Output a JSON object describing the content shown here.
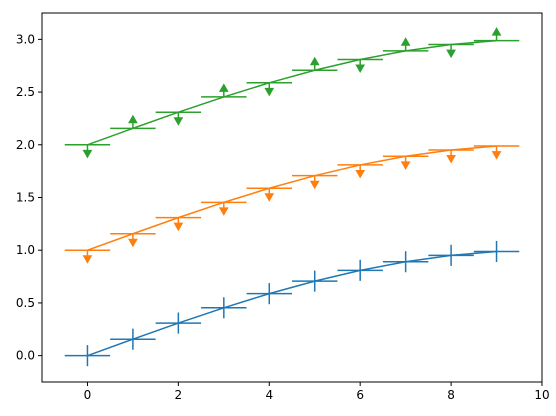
{
  "chart_data": {
    "type": "line",
    "title": "",
    "xlabel": "",
    "ylabel": "",
    "xlim": [
      -1,
      10
    ],
    "ylim": [
      -0.25,
      3.25
    ],
    "x_ticks": [
      0,
      2,
      4,
      6,
      8,
      10
    ],
    "x_tick_labels": [
      "0",
      "2",
      "4",
      "6",
      "8",
      "10"
    ],
    "y_ticks": [
      0.0,
      0.5,
      1.0,
      1.5,
      2.0,
      2.5,
      3.0
    ],
    "y_tick_labels": [
      "0.0",
      "0.5",
      "1.0",
      "1.5",
      "2.0",
      "2.5",
      "3.0"
    ],
    "grid": false,
    "legend": "none",
    "errorbar_style": "error bars with half-width horizontal bars (x error 0.5) and vertical bars (y error 0.1); some vertical bars drawn as upper-limit or lower-limit arrows",
    "x": [
      0,
      1,
      2,
      3,
      4,
      5,
      6,
      7,
      8,
      9
    ],
    "xerr": 0.5,
    "yerr": 0.1,
    "series": [
      {
        "color": "#1f77b4",
        "values": [
          0.0,
          0.156,
          0.309,
          0.454,
          0.588,
          0.707,
          0.809,
          0.891,
          0.951,
          0.988
        ],
        "y_markers": [
          "bar",
          "bar",
          "bar",
          "bar",
          "bar",
          "bar",
          "bar",
          "bar",
          "bar",
          "bar"
        ]
      },
      {
        "color": "#ff7f0e",
        "values": [
          1.0,
          1.156,
          1.309,
          1.454,
          1.588,
          1.707,
          1.809,
          1.891,
          1.951,
          1.988
        ],
        "y_markers": [
          "upper-limit",
          "upper-limit",
          "upper-limit",
          "upper-limit",
          "upper-limit",
          "upper-limit",
          "upper-limit",
          "upper-limit",
          "upper-limit",
          "upper-limit"
        ]
      },
      {
        "color": "#2ca02c",
        "values": [
          2.0,
          2.156,
          2.309,
          2.454,
          2.588,
          2.707,
          2.809,
          2.891,
          2.951,
          2.988
        ],
        "y_markers": [
          "upper-limit",
          "lower-limit",
          "upper-limit",
          "lower-limit",
          "upper-limit",
          "lower-limit",
          "upper-limit",
          "lower-limit",
          "upper-limit",
          "lower-limit"
        ]
      }
    ]
  }
}
